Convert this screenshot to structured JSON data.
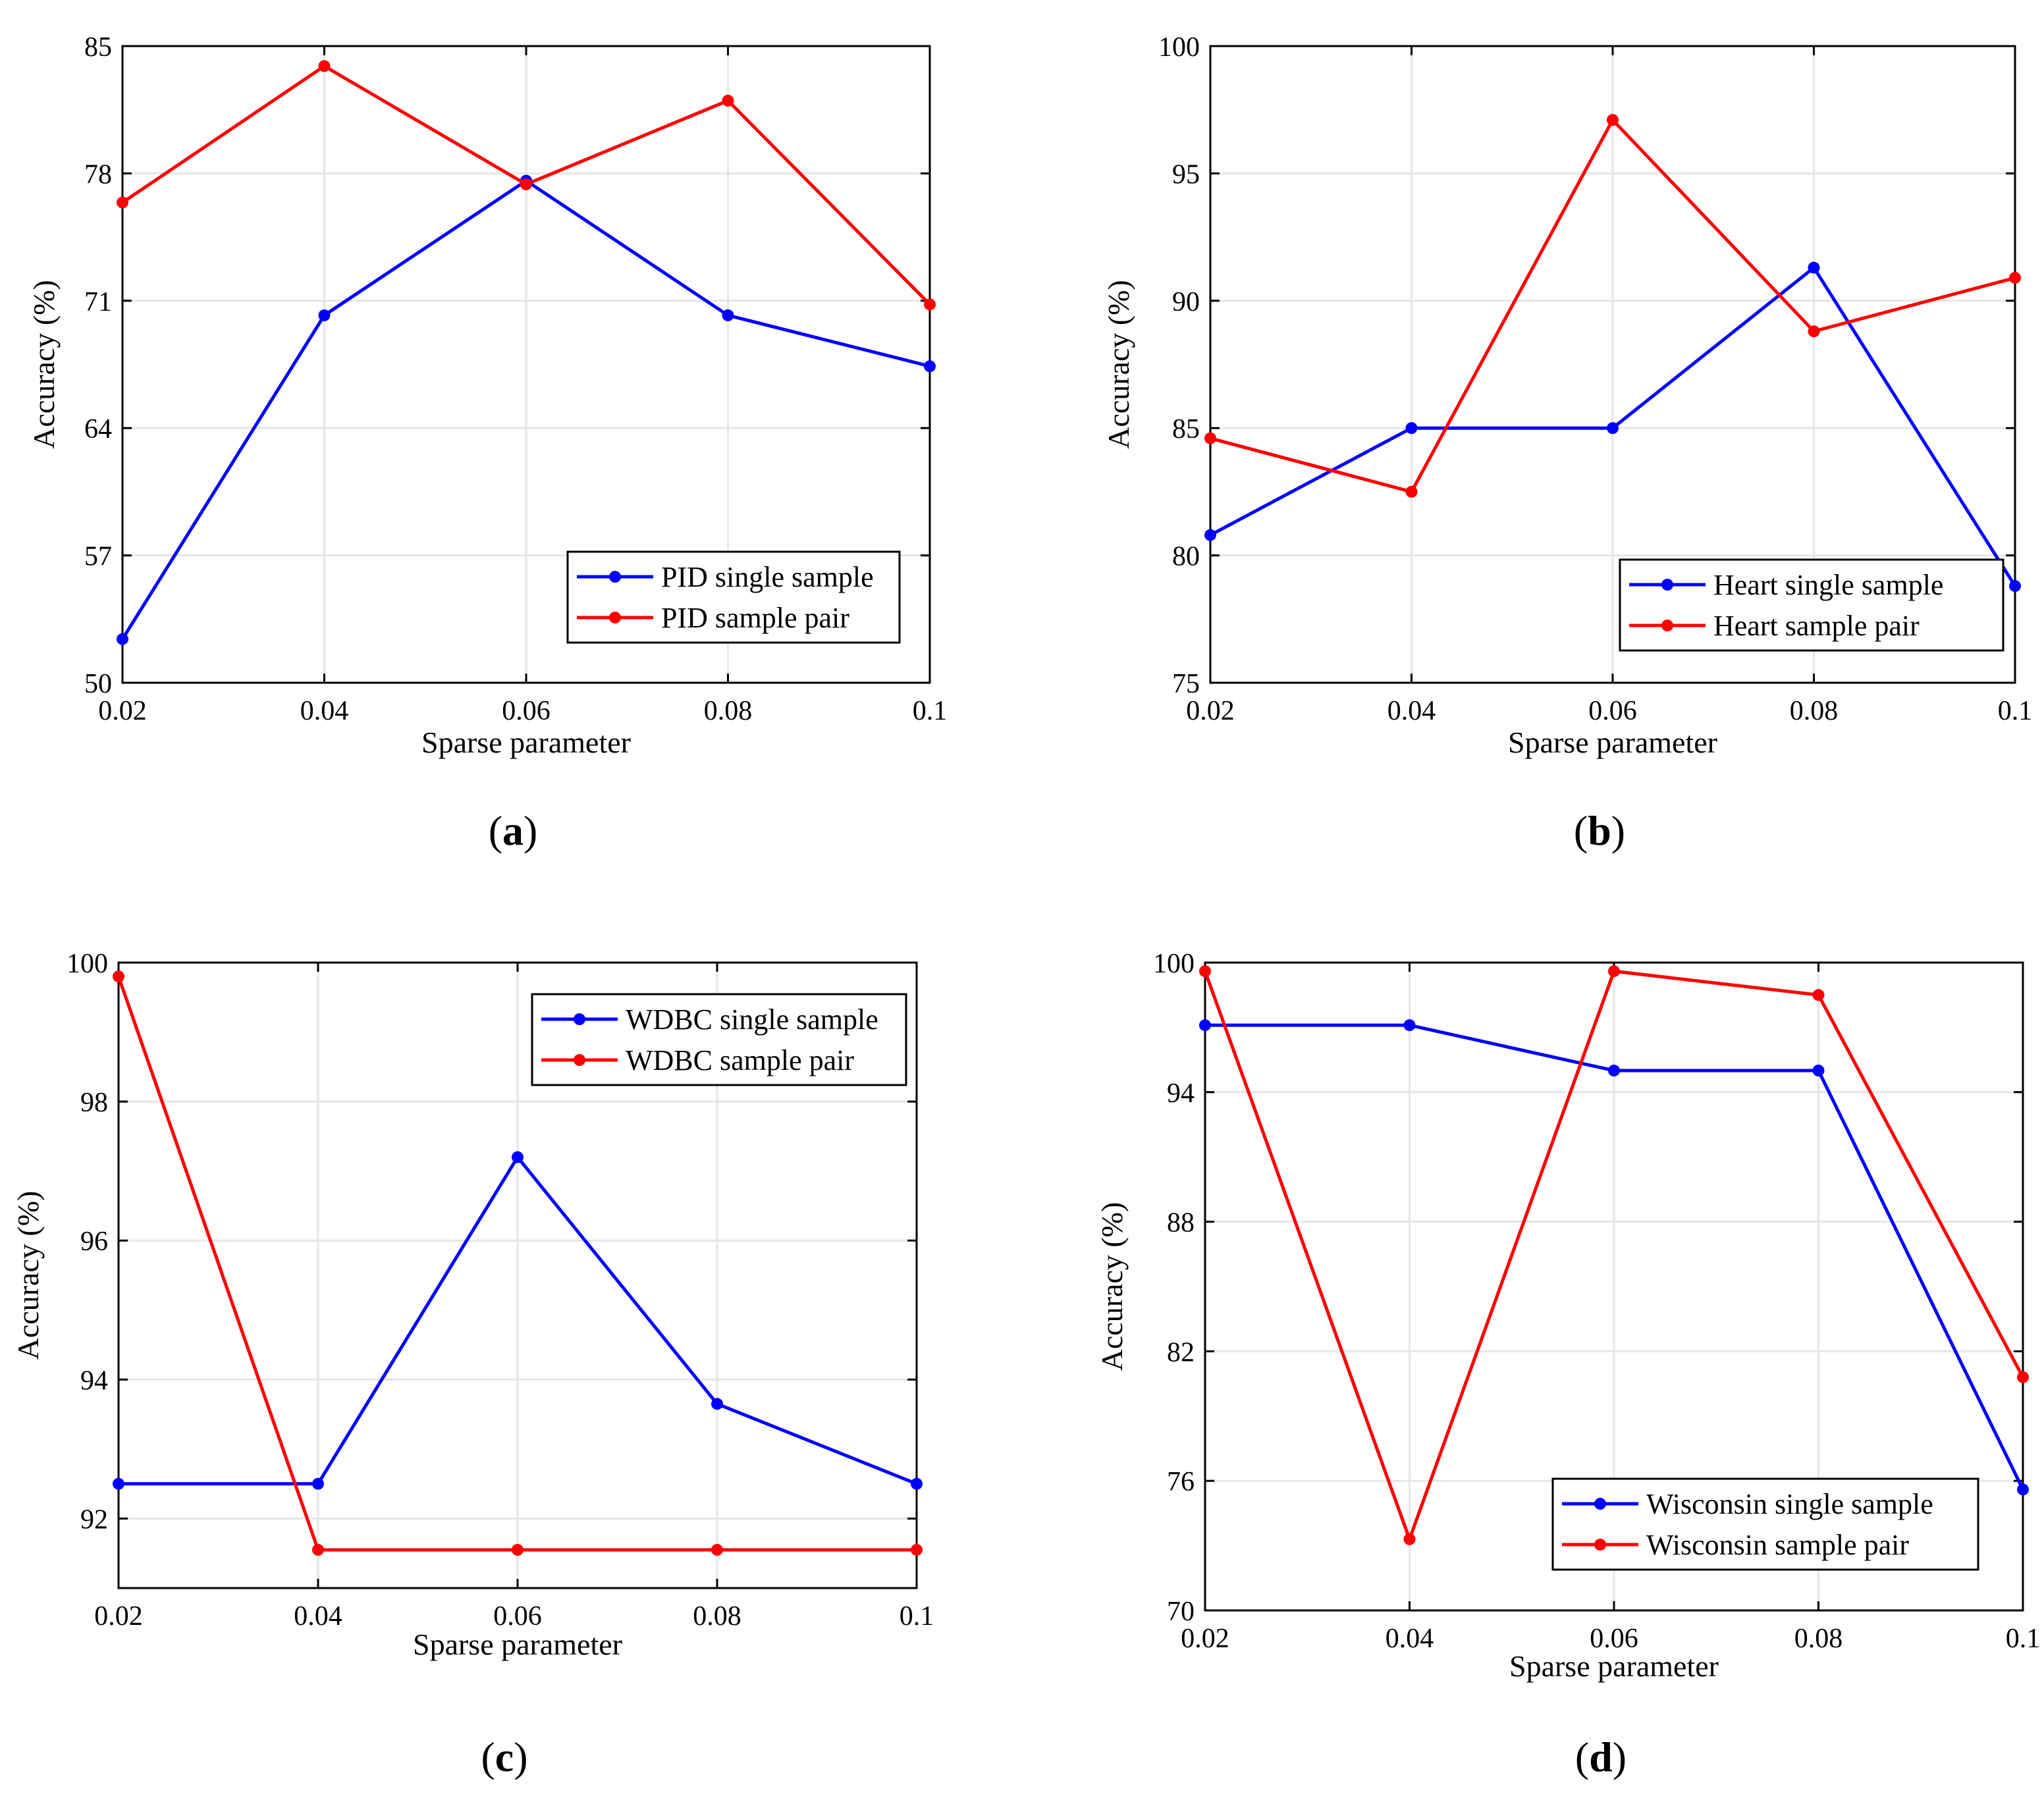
{
  "panel_labels": [
    "a",
    "b",
    "c",
    "d"
  ],
  "colors": {
    "single": "#0000ff",
    "pair": "#ff0000"
  },
  "chart_data": [
    {
      "type": "line",
      "title": "",
      "xlabel": "Sparse parameter",
      "ylabel": "Accuracy (%)",
      "x": [
        0.02,
        0.04,
        0.06,
        0.08,
        0.1
      ],
      "x_ticks": [
        "0.02",
        "0.04",
        "0.06",
        "0.08",
        "0.1"
      ],
      "ylim": [
        50,
        85
      ],
      "y_ticks": [
        "50",
        "57",
        "64",
        "71",
        "78",
        "85"
      ],
      "y_tick_values": [
        50,
        57,
        64,
        71,
        78,
        85
      ],
      "grid": true,
      "legend_position": "bottom-right",
      "series": [
        {
          "name": "PID single sample",
          "color": "#0000ff",
          "values": [
            52.4,
            70.2,
            77.6,
            70.2,
            67.4
          ]
        },
        {
          "name": "PID sample pair",
          "color": "#ff0000",
          "values": [
            76.4,
            83.9,
            77.4,
            82.0,
            70.8
          ]
        }
      ]
    },
    {
      "type": "line",
      "title": "",
      "xlabel": "Sparse parameter",
      "ylabel": "Accuracy (%)",
      "x": [
        0.02,
        0.04,
        0.06,
        0.08,
        0.1
      ],
      "x_ticks": [
        "0.02",
        "0.04",
        "0.06",
        "0.08",
        "0.1"
      ],
      "ylim": [
        75,
        100
      ],
      "y_ticks": [
        "75",
        "80",
        "85",
        "90",
        "95",
        "100"
      ],
      "y_tick_values": [
        75,
        80,
        85,
        90,
        95,
        100
      ],
      "grid": true,
      "legend_position": "bottom-right",
      "series": [
        {
          "name": "Heart single sample",
          "color": "#0000ff",
          "values": [
            80.8,
            85.0,
            85.0,
            91.3,
            78.8
          ]
        },
        {
          "name": "Heart sample pair",
          "color": "#ff0000",
          "values": [
            84.6,
            82.5,
            97.1,
            88.8,
            90.9
          ]
        }
      ]
    },
    {
      "type": "line",
      "title": "",
      "xlabel": "Sparse parameter",
      "ylabel": "Accuracy (%)",
      "x": [
        0.02,
        0.04,
        0.06,
        0.08,
        0.1
      ],
      "x_ticks": [
        "0.02",
        "0.04",
        "0.06",
        "0.08",
        "0.1"
      ],
      "ylim": [
        91.0,
        100.0
      ],
      "y_ticks": [
        "92",
        "94",
        "96",
        "98",
        "100"
      ],
      "y_tick_values": [
        92,
        94,
        96,
        98,
        100
      ],
      "grid": true,
      "legend_position": "top-right",
      "series": [
        {
          "name": "WDBC single sample",
          "color": "#0000ff",
          "values": [
            92.5,
            92.5,
            97.2,
            93.65,
            92.5
          ]
        },
        {
          "name": "WDBC sample pair",
          "color": "#ff0000",
          "values": [
            99.8,
            91.55,
            91.55,
            91.55,
            91.55
          ]
        }
      ]
    },
    {
      "type": "line",
      "title": "",
      "xlabel": "Sparse parameter",
      "ylabel": "Accuracy (%)",
      "x": [
        0.02,
        0.04,
        0.06,
        0.08,
        0.1
      ],
      "x_ticks": [
        "0.02",
        "0.04",
        "0.06",
        "0.08",
        "0.1"
      ],
      "ylim": [
        70,
        100
      ],
      "y_ticks": [
        "70",
        "76",
        "82",
        "88",
        "94",
        "100"
      ],
      "y_tick_values": [
        70,
        76,
        82,
        88,
        94,
        100
      ],
      "grid": true,
      "legend_position": "bottom-right",
      "series": [
        {
          "name": "Wisconsin single sample",
          "color": "#0000ff",
          "values": [
            97.1,
            97.1,
            95.0,
            95.0,
            75.6
          ]
        },
        {
          "name": "Wisconsin sample pair",
          "color": "#ff0000",
          "values": [
            99.6,
            73.3,
            99.6,
            98.5,
            80.8
          ]
        }
      ]
    }
  ]
}
